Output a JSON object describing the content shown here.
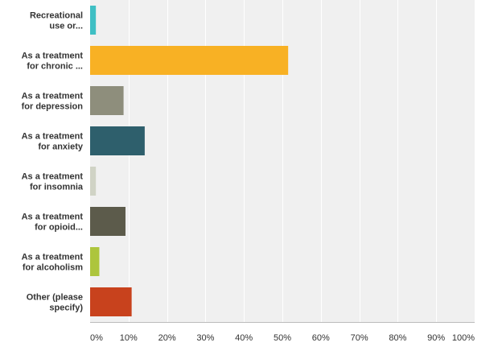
{
  "chart_data": {
    "type": "bar",
    "orientation": "horizontal",
    "categories": [
      [
        "Recreational",
        "use or..."
      ],
      [
        "As a treatment",
        "for chronic ..."
      ],
      [
        "As a treatment",
        "for depression"
      ],
      [
        "As a treatment",
        "for anxiety"
      ],
      [
        "As a treatment",
        "for insomnia"
      ],
      [
        "As a treatment",
        "for opioid..."
      ],
      [
        "As a treatment",
        "for alcoholism"
      ],
      [
        "Other (please",
        "specify)"
      ]
    ],
    "values": [
      1.5,
      51.5,
      8.7,
      14.2,
      1.5,
      9.2,
      2.4,
      10.8
    ],
    "colors": [
      "#3fbfc4",
      "#f8b124",
      "#8e8e7c",
      "#2e5f6c",
      "#d0d3c5",
      "#5c5b4b",
      "#adc53c",
      "#c8421d"
    ],
    "xlim": [
      0,
      100
    ],
    "ticks": [
      "0%",
      "10%",
      "20%",
      "30%",
      "40%",
      "50%",
      "60%",
      "70%",
      "80%",
      "90%",
      "100%"
    ],
    "grid": true,
    "plot_background": "#f0f0f0",
    "gridline_color": "#ffffff"
  }
}
